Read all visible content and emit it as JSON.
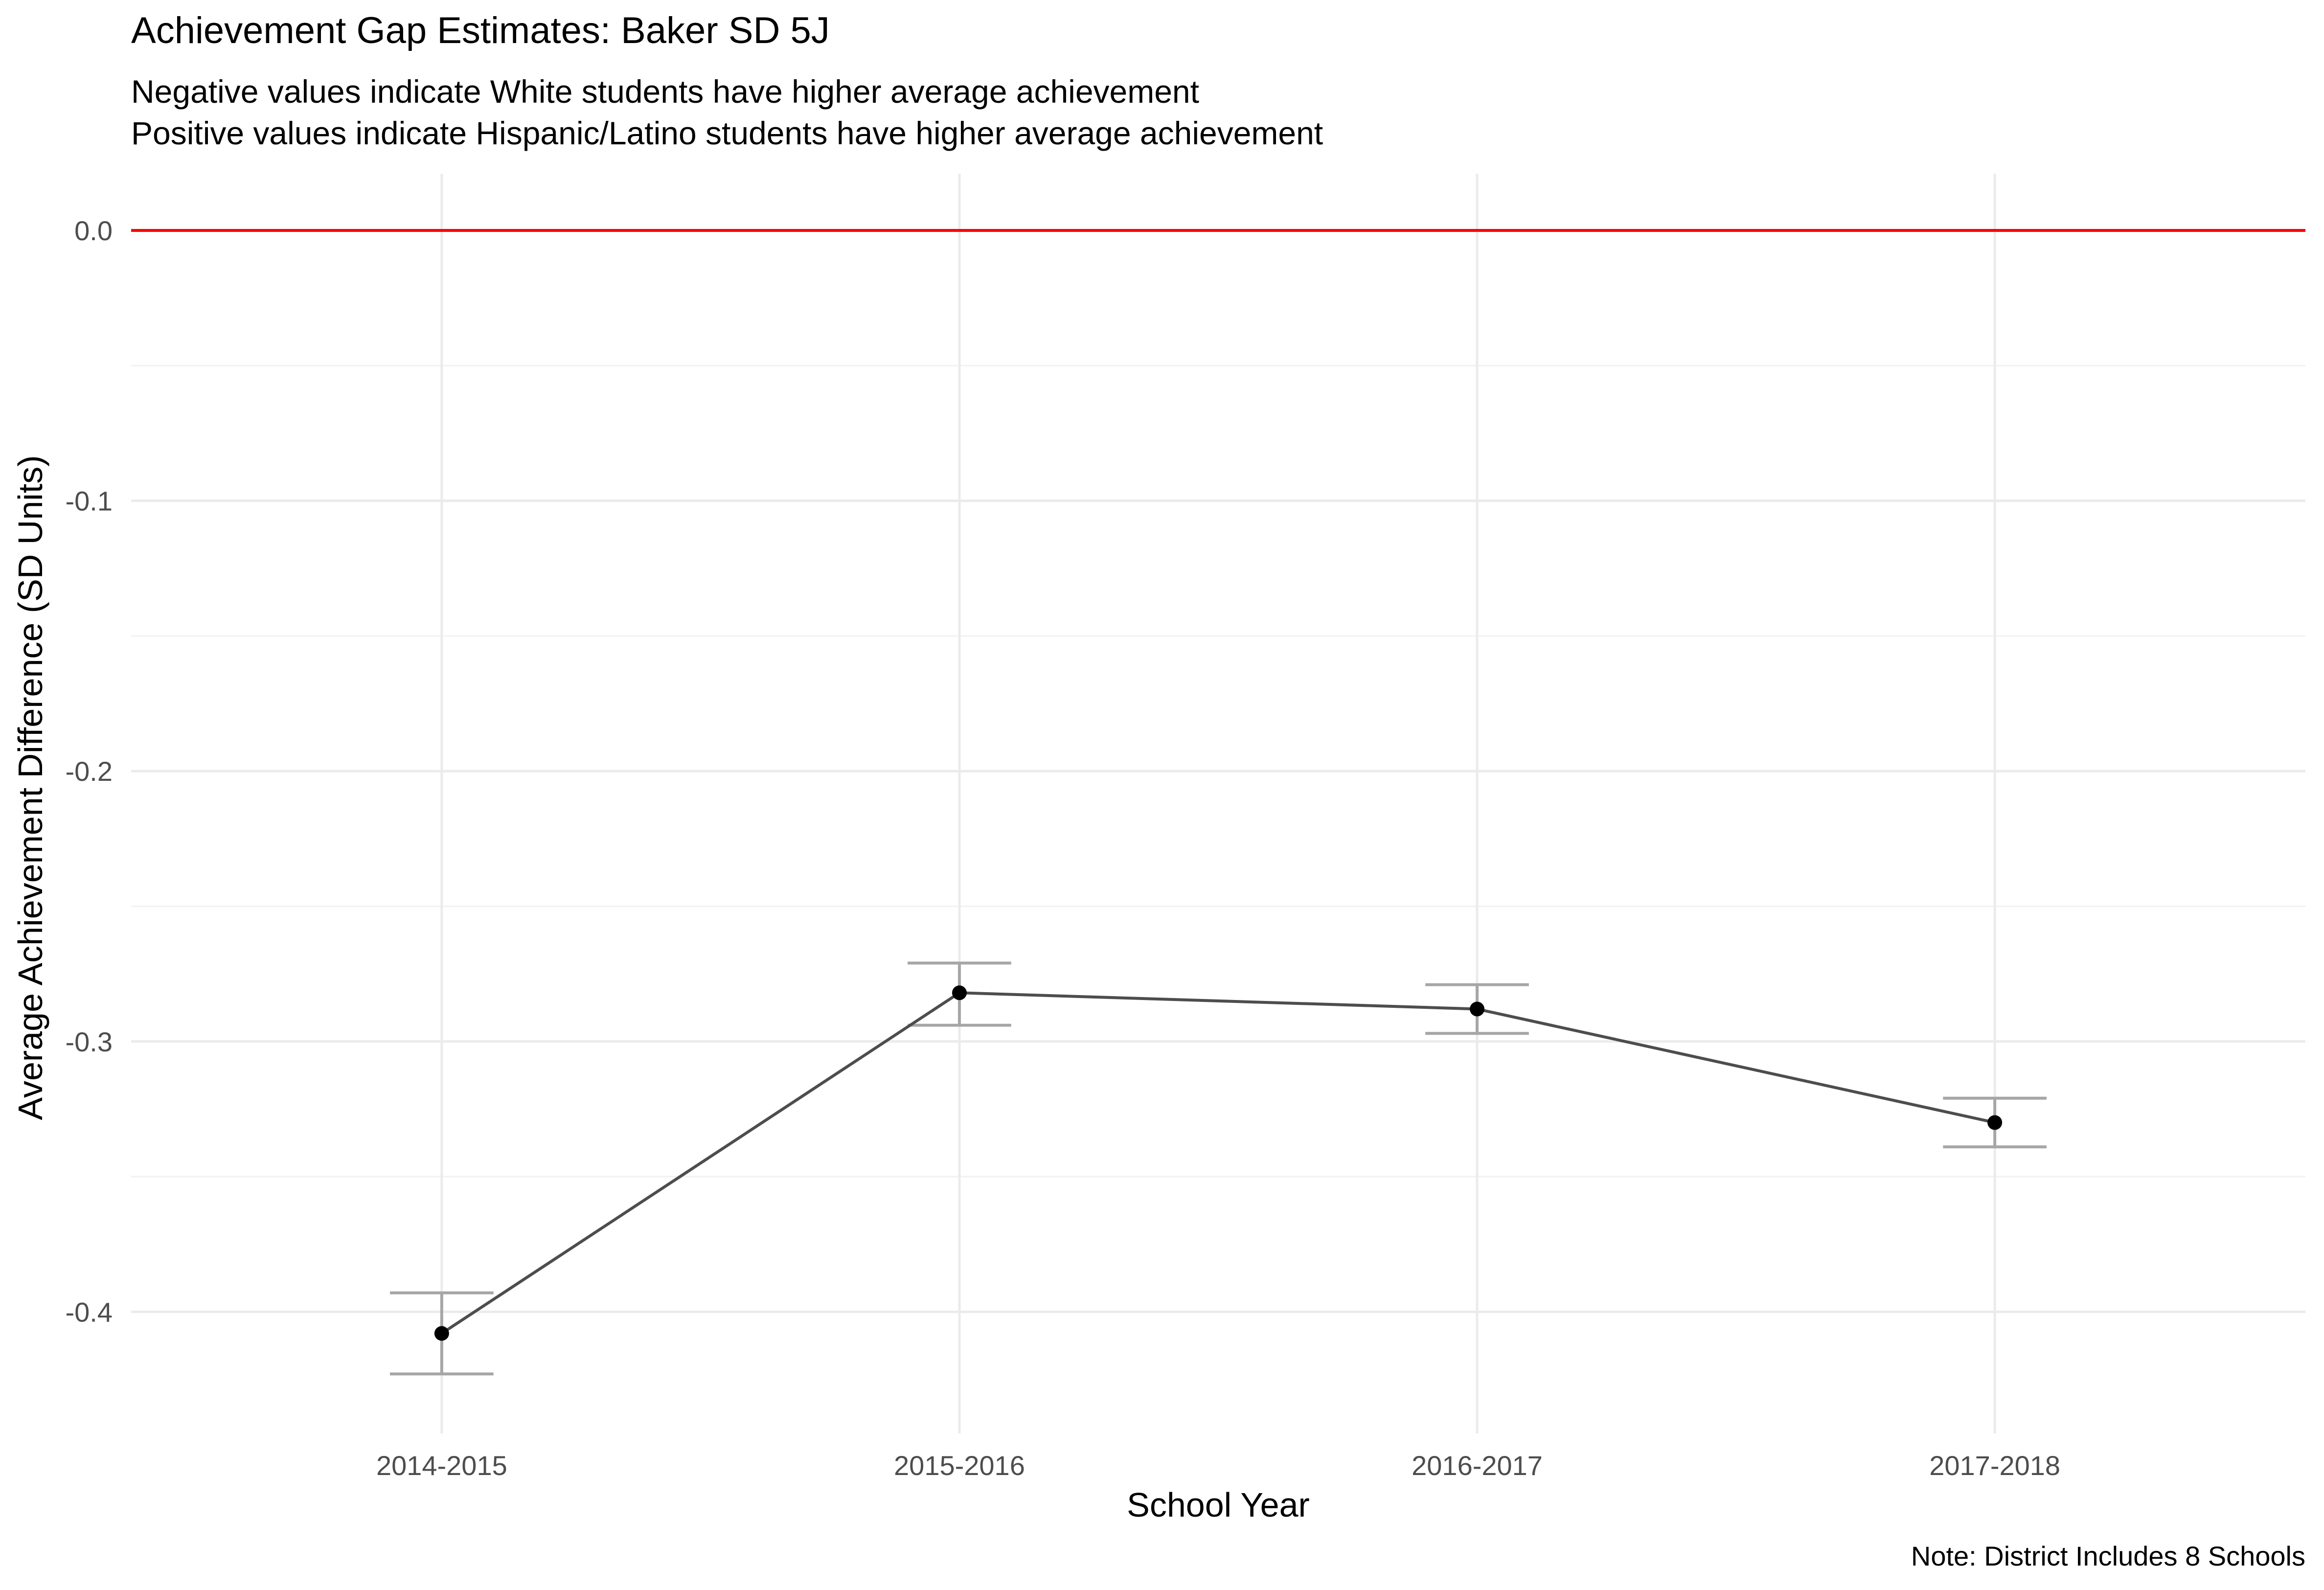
{
  "chart_data": {
    "type": "line",
    "title": "Achievement Gap Estimates: Baker SD 5J",
    "subtitle_lines": [
      "Negative values indicate White students have higher average achievement",
      "Positive values indicate Hispanic/Latino students have higher average achievement"
    ],
    "xlabel": "School Year",
    "ylabel": "Average Achievement Difference (SD Units)",
    "caption": "Note: District Includes 8 Schools",
    "categories": [
      "2014-2015",
      "2015-2016",
      "2016-2017",
      "2017-2018"
    ],
    "series": [
      {
        "values": [
          -0.408,
          -0.282,
          -0.288,
          -0.33
        ],
        "lower": [
          -0.423,
          -0.294,
          -0.297,
          -0.339
        ],
        "upper": [
          -0.393,
          -0.271,
          -0.279,
          -0.321
        ]
      }
    ],
    "reference_line": 0.0,
    "ylim": [
      -0.445,
      0.021
    ],
    "yticks": [
      0.0,
      -0.1,
      -0.2,
      -0.3,
      -0.4
    ],
    "ytick_labels": [
      "0.0",
      "-0.1",
      "-0.2",
      "-0.3",
      "-0.4"
    ],
    "grid": true,
    "colors": {
      "line": "#4d4d4d",
      "point": "#000000",
      "errorbar": "#a6a6a6",
      "reference": "#ff0000",
      "grid_major": "#ebebeb",
      "grid_minor": "#f2f2f2",
      "text": "#000000",
      "tick_text": "#4d4d4d"
    }
  }
}
